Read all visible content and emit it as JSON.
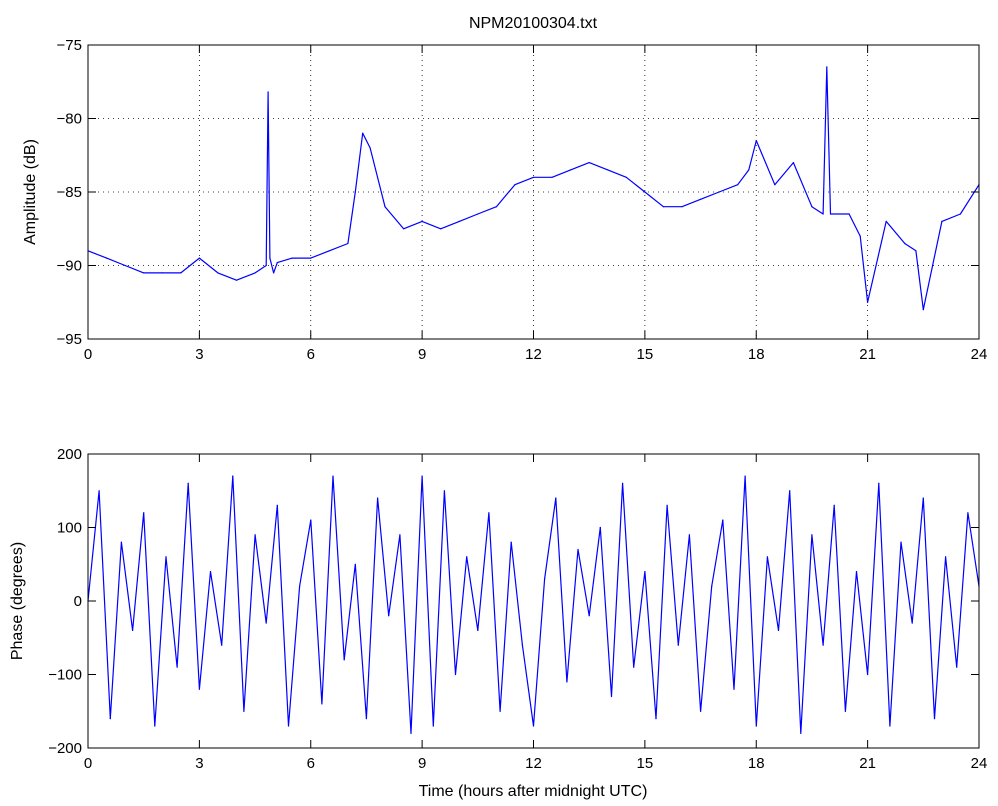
{
  "chart_data": [
    {
      "type": "line",
      "title": "NPM20100304.txt",
      "xlabel": "",
      "ylabel": "Amplitude (dB)",
      "xlim": [
        0,
        24
      ],
      "ylim": [
        -95,
        -75
      ],
      "xticks": [
        "0",
        "3",
        "6",
        "9",
        "12",
        "15",
        "18",
        "21",
        "24"
      ],
      "yticks": [
        "-75",
        "-80",
        "-85",
        "-90",
        "-95"
      ],
      "grid": true,
      "series_color": "#0000ff",
      "series": [
        {
          "x": [
            0,
            0.5,
            1,
            1.5,
            2,
            2.5,
            3,
            3.5,
            4,
            4.5,
            4.8,
            4.85,
            4.9,
            5.0,
            5.1,
            5.5,
            6,
            6.5,
            7,
            7.2,
            7.4,
            7.6,
            8,
            8.5,
            9,
            9.5,
            10,
            10.5,
            11,
            11.5,
            12,
            12.5,
            13,
            13.5,
            14,
            14.5,
            15,
            15.5,
            16,
            16.5,
            17,
            17.5,
            17.8,
            18,
            18.5,
            19,
            19.5,
            19.8,
            19.9,
            20.0,
            20.5,
            20.8,
            21,
            21.5,
            22,
            22.3,
            22.5,
            23,
            23.5,
            24
          ],
          "y": [
            -89,
            -89.5,
            -90,
            -90.5,
            -90.5,
            -90.5,
            -89.5,
            -90.5,
            -91,
            -90.5,
            -90,
            -78.2,
            -89.5,
            -90.5,
            -89.8,
            -89.5,
            -89.5,
            -89,
            -88.5,
            -85,
            -81,
            -82,
            -86,
            -87.5,
            -87,
            -87.5,
            -87,
            -86.5,
            -86,
            -84.5,
            -84,
            -84,
            -83.5,
            -83,
            -83.5,
            -84,
            -85,
            -86,
            -86,
            -85.5,
            -85,
            -84.5,
            -83.5,
            -81.5,
            -84.5,
            -83,
            -86,
            -86.5,
            -76.5,
            -86.5,
            -86.5,
            -88,
            -92.5,
            -87,
            -88.5,
            -89,
            -93,
            -87,
            -86.5,
            -84.5
          ]
        }
      ]
    },
    {
      "type": "line",
      "title": "",
      "xlabel": "Time (hours after midnight UTC)",
      "ylabel": "Phase (degrees)",
      "xlim": [
        0,
        24
      ],
      "ylim": [
        -200,
        200
      ],
      "xticks": [
        "0",
        "3",
        "6",
        "9",
        "12",
        "15",
        "18",
        "21",
        "24"
      ],
      "yticks": [
        "200",
        "100",
        "0",
        "-100",
        "-200"
      ],
      "grid": false,
      "series_color": "#0000ff",
      "series": [
        {
          "x": [
            0,
            0.3,
            0.6,
            0.9,
            1.2,
            1.5,
            1.8,
            2.1,
            2.4,
            2.7,
            3.0,
            3.3,
            3.6,
            3.9,
            4.2,
            4.5,
            4.8,
            5.1,
            5.4,
            5.7,
            6.0,
            6.3,
            6.6,
            6.9,
            7.2,
            7.5,
            7.8,
            8.1,
            8.4,
            8.7,
            9.0,
            9.3,
            9.6,
            9.9,
            10.2,
            10.5,
            10.8,
            11.1,
            11.4,
            11.7,
            12.0,
            12.3,
            12.6,
            12.9,
            13.2,
            13.5,
            13.8,
            14.1,
            14.4,
            14.7,
            15.0,
            15.3,
            15.6,
            15.9,
            16.2,
            16.5,
            16.8,
            17.1,
            17.4,
            17.7,
            18.0,
            18.3,
            18.6,
            18.9,
            19.2,
            19.5,
            19.8,
            20.1,
            20.4,
            20.7,
            21.0,
            21.3,
            21.6,
            21.9,
            22.2,
            22.5,
            22.8,
            23.1,
            23.4,
            23.7,
            24.0
          ],
          "y": [
            0,
            150,
            -160,
            80,
            -40,
            120,
            -170,
            60,
            -90,
            160,
            -120,
            40,
            -60,
            170,
            -150,
            90,
            -30,
            130,
            -170,
            20,
            110,
            -140,
            170,
            -80,
            50,
            -160,
            140,
            -20,
            90,
            -180,
            170,
            -170,
            150,
            -100,
            60,
            -40,
            120,
            -150,
            80,
            -60,
            -170,
            30,
            140,
            -110,
            70,
            -20,
            100,
            -130,
            160,
            -90,
            40,
            -160,
            130,
            -60,
            90,
            -150,
            20,
            110,
            -120,
            170,
            -170,
            60,
            -40,
            150,
            -180,
            90,
            -60,
            130,
            -150,
            40,
            -100,
            160,
            -170,
            80,
            -30,
            140,
            -160,
            60,
            -90,
            120,
            20
          ]
        }
      ]
    }
  ]
}
